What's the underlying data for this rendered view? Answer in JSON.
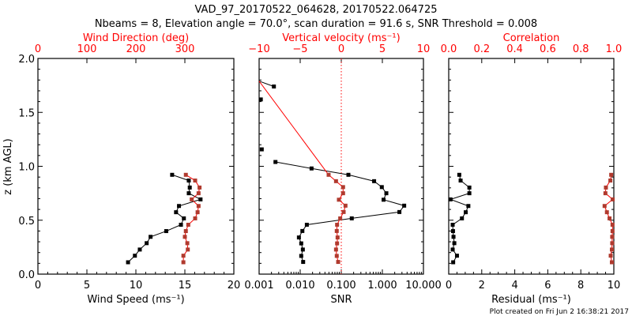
{
  "title_line1": "VAD_97_20170522_064628, 20170522.064725",
  "title_line2": "Nbeams = 8, Elevation angle = 70.0°, scan duration = 91.6 s, SNR Threshold = 0.008",
  "footer": "Plot created on Fri Jun  2 16:38:21 2017",
  "colors": {
    "primary": "#000000",
    "secondary_line": "#ff0000",
    "secondary_marker": "#b03a2e",
    "axis_red": "#ff0000"
  },
  "chart_data": [
    {
      "type": "line",
      "ylabel": "z (km AGL)",
      "ylim": [
        0,
        2.0
      ],
      "yticks": [
        "0.0",
        "0.5",
        "1.0",
        "1.5",
        "2.0"
      ],
      "xlabel": "Wind Speed (ms⁻¹)",
      "xlim": [
        0,
        20
      ],
      "xticks": [
        "0",
        "5",
        "10",
        "15",
        "20"
      ],
      "top_label": "Wind Direction (deg)",
      "top_lim": [
        0,
        400
      ],
      "top_ticks": [
        "0",
        "100",
        "200",
        "300"
      ],
      "series": [
        {
          "name": "Wind Speed",
          "axis": "bottom",
          "z": [
            0.11,
            0.171,
            0.228,
            0.287,
            0.346,
            0.399,
            0.458,
            0.517,
            0.574,
            0.632,
            0.693,
            0.75,
            0.803,
            0.868,
            0.921
          ],
          "values": [
            9.2,
            9.9,
            10.4,
            11.1,
            11.5,
            13.1,
            14.6,
            14.9,
            14.1,
            14.4,
            16.6,
            15.4,
            15.5,
            15.4,
            13.7
          ]
        },
        {
          "name": "Wind Direction",
          "axis": "top",
          "z": [
            0.11,
            0.171,
            0.228,
            0.287,
            0.346,
            0.399,
            0.458,
            0.517,
            0.574,
            0.632,
            0.693,
            0.75,
            0.803,
            0.868,
            0.921
          ],
          "values": [
            297,
            297,
            306,
            305,
            300,
            302,
            307,
            321,
            326,
            328,
            314,
            328,
            330,
            321,
            302
          ]
        }
      ]
    },
    {
      "type": "line",
      "ylim": [
        0,
        2.0
      ],
      "xlabel": "SNR",
      "xscale": "log",
      "xlim": [
        0.001,
        10
      ],
      "xticks": [
        "0.001",
        "0.010",
        "0.100",
        "1.000",
        "10.000"
      ],
      "top_label": "Vertical velocity (ms⁻¹)",
      "top_lim": [
        -10,
        10
      ],
      "top_ticks": [
        "−10",
        "−5",
        "0",
        "5",
        "10"
      ],
      "reference_line": {
        "axis": "top",
        "value": 0
      },
      "series": [
        {
          "name": "SNR",
          "axis": "bottom",
          "z": [
            0.113,
            0.169,
            0.228,
            0.285,
            0.34,
            0.4,
            0.458,
            0.517,
            0.576,
            0.635,
            0.69,
            0.75,
            0.807,
            0.862,
            0.921,
            0.98,
            1.04,
            1.157,
            1.62,
            1.74
          ],
          "values": [
            0.0118,
            0.0106,
            0.0116,
            0.0106,
            0.0093,
            0.0113,
            0.0145,
            0.18,
            2.6,
            3.4,
            1.07,
            1.25,
            0.97,
            0.63,
            0.149,
            0.0189,
            0.0025,
            0.00116,
            0.0011,
            0.00229
          ]
        },
        {
          "name": "Vertical velocity",
          "axis": "top",
          "z": [
            0.113,
            0.169,
            0.228,
            0.285,
            0.34,
            0.4,
            0.458,
            0.517,
            0.576,
            0.635,
            0.69,
            0.75,
            0.807,
            0.862,
            0.921
          ],
          "values": [
            -0.38,
            -0.55,
            -0.64,
            -0.51,
            -0.45,
            -0.55,
            -0.51,
            -0.13,
            0.29,
            0.51,
            -0.29,
            0.22,
            0.22,
            -0.64,
            -1.54
          ]
        }
      ]
    },
    {
      "type": "line",
      "ylim": [
        0,
        2.0
      ],
      "xlabel": "Residual (ms⁻¹)",
      "xlim": [
        0,
        10
      ],
      "xticks": [
        "0",
        "2",
        "4",
        "6",
        "8",
        "10"
      ],
      "top_label": "Correlation",
      "top_lim": [
        0,
        1
      ],
      "top_ticks": [
        "0.0",
        "0.2",
        "0.4",
        "0.6",
        "0.8",
        "1.0"
      ],
      "series": [
        {
          "name": "Residual",
          "axis": "bottom",
          "z": [
            0.11,
            0.171,
            0.228,
            0.287,
            0.346,
            0.399,
            0.458,
            0.517,
            0.574,
            0.632,
            0.693,
            0.75,
            0.803,
            0.868,
            0.921
          ],
          "values": [
            0.27,
            0.5,
            0.24,
            0.34,
            0.29,
            0.26,
            0.24,
            0.8,
            1.03,
            1.19,
            0.11,
            1.25,
            1.25,
            0.72,
            0.64
          ]
        },
        {
          "name": "Correlation",
          "axis": "top",
          "z": [
            0.11,
            0.171,
            0.228,
            0.287,
            0.346,
            0.399,
            0.458,
            0.517,
            0.574,
            0.632,
            0.693,
            0.75,
            0.803,
            0.868,
            0.921
          ],
          "values": [
            0.988,
            0.981,
            0.988,
            0.99,
            0.99,
            0.992,
            0.992,
            0.974,
            0.958,
            0.944,
            0.993,
            0.949,
            0.952,
            0.979,
            0.984
          ]
        }
      ]
    }
  ]
}
